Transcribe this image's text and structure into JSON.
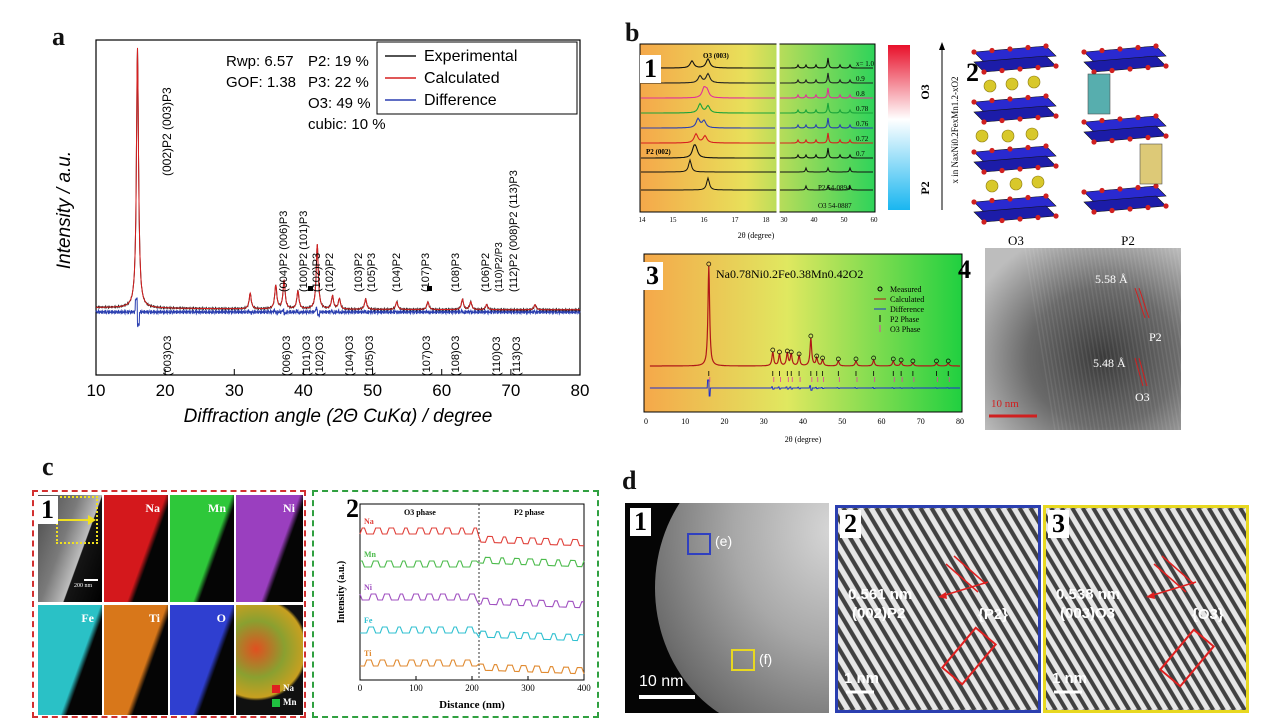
{
  "panel_a": {
    "letter": "a",
    "stats": {
      "rwp": "Rwp: 6.57",
      "gof": "GOF: 1.38",
      "p2": "P2: 19 %",
      "p3": "P3: 22 %",
      "o3": "O3: 49 %",
      "cubic": "cubic: 10 %"
    },
    "legend": [
      "Experimental",
      "Calculated",
      "Difference"
    ],
    "colors": {
      "experimental": "#1a1a1a",
      "calculated": "#d62020",
      "difference": "#2b3fb0"
    },
    "upper_labels": [
      "(002)P2 (003)P3",
      "(004)P2 (006)P3",
      "(100)P2 (101)P3",
      "(102)P3",
      "(102)P2",
      "(103)P2",
      "(105)P3",
      "(104)P2",
      "(107)P3",
      "(108)P3",
      "(106)P2",
      "(110)P2/P3",
      "(112)P2 (008)P2 (113)P3"
    ],
    "lower_labels": [
      "(003)O3",
      "(006)O3",
      "(101)O3",
      "(102)O3",
      "(104)O3",
      "(105)O3",
      "(107)O3",
      "(108)O3",
      "(110)O3",
      "(113)O3"
    ],
    "chart_data": {
      "type": "line",
      "xlabel": "Diffraction angle (2Θ CuKα) / degree",
      "ylabel": "Intensity / a.u.",
      "xlim": [
        10,
        80
      ],
      "xticks": [
        10,
        20,
        30,
        40,
        50,
        60,
        70,
        80
      ],
      "series": [
        {
          "name": "Experimental",
          "peaks": [
            [
              16.0,
              1.0
            ],
            [
              32.3,
              0.06
            ],
            [
              36.0,
              0.09
            ],
            [
              37.2,
              0.11
            ],
            [
              39.2,
              0.07
            ],
            [
              42.0,
              0.25
            ],
            [
              44.2,
              0.05
            ],
            [
              45.2,
              0.04
            ],
            [
              49.0,
              0.04
            ],
            [
              53.5,
              0.03
            ],
            [
              58.0,
              0.03
            ],
            [
              63.0,
              0.04
            ],
            [
              64.2,
              0.03
            ],
            [
              66.5,
              0.02
            ],
            [
              73.5,
              0.02
            ]
          ]
        },
        {
          "name": "Calculated",
          "peaks": [
            [
              16.0,
              1.0
            ],
            [
              32.3,
              0.06
            ],
            [
              36.0,
              0.09
            ],
            [
              37.2,
              0.11
            ],
            [
              39.2,
              0.07
            ],
            [
              42.0,
              0.25
            ],
            [
              44.2,
              0.05
            ],
            [
              45.2,
              0.04
            ],
            [
              49.0,
              0.04
            ],
            [
              53.5,
              0.03
            ],
            [
              58.0,
              0.03
            ],
            [
              63.0,
              0.04
            ],
            [
              64.2,
              0.03
            ],
            [
              66.5,
              0.02
            ],
            [
              73.5,
              0.02
            ]
          ]
        },
        {
          "name": "Difference",
          "baseline_offset": -0.12
        }
      ]
    }
  },
  "panel_b": {
    "letter": "b",
    "sub1": {
      "num": "1",
      "x_values": [
        "x= 1.0",
        "0.9",
        "0.8",
        "0.78",
        "0.76",
        "0.72",
        "0.7"
      ],
      "ref_labels": [
        "P2 54-0894",
        "O3 54-0887"
      ],
      "peak_labels": [
        "O3 (003)",
        "P2 (002)"
      ],
      "xlabel": "2θ (degree)",
      "xticks_left": [
        "14",
        "15",
        "16",
        "17",
        "18"
      ],
      "xticks_right": [
        "30",
        "40",
        "50",
        "60"
      ],
      "colors": [
        "#111111",
        "#222222",
        "#e0309a",
        "#19a33a",
        "#2b3fb0",
        "#d62020",
        "#111111"
      ]
    },
    "bar": {
      "top": "O3",
      "bottom": "P2",
      "axis": "x in NaxNi0.2FexMn1.2-xO2"
    },
    "sub2": {
      "num": "2",
      "labels": [
        "O3",
        "P2"
      ]
    },
    "sub3": {
      "num": "3",
      "formula": "Na0.78Ni0.2Fe0.38Mn0.42O2",
      "legend": [
        "Measured",
        "Calculated",
        "Difference",
        "P2 Phase",
        "O3 Phase"
      ],
      "xlabel": "2θ (degree)",
      "xticks": [
        "0",
        "10",
        "20",
        "30",
        "40",
        "50",
        "60",
        "70",
        "80"
      ]
    },
    "sub4": {
      "num": "4",
      "d1": "5.58 Å",
      "d2": "5.48 Å",
      "p2": "P2",
      "o3": "O3",
      "scale": "10 nm"
    }
  },
  "panel_c": {
    "letter": "c",
    "sub1": {
      "num": "1",
      "scale": "200 nm",
      "tiles": [
        {
          "label": "",
          "color": "#5f5f5f"
        },
        {
          "label": "Na",
          "color": "#d4181c"
        },
        {
          "label": "Mn",
          "color": "#2ec83a"
        },
        {
          "label": "Ni",
          "color": "#9a3fbf"
        },
        {
          "label": "Fe",
          "color": "#2ac1c6"
        },
        {
          "label": "Ti",
          "color": "#d8771a"
        },
        {
          "label": "O",
          "color": "#2f3fd0"
        },
        {
          "label": "",
          "color": "#9a8a2a"
        }
      ],
      "overlay_legend": [
        "Na",
        "Mn"
      ]
    },
    "sub2": {
      "num": "2",
      "phase_left": "O3 phase",
      "phase_right": "P2 phase",
      "xlabel": "Distance (nm)",
      "ylabel": "Intensity (a.u.)",
      "xticks": [
        "0",
        "100",
        "200",
        "300",
        "400"
      ],
      "series": [
        {
          "name": "Na",
          "color": "#e0403a"
        },
        {
          "name": "Mn",
          "color": "#4cbb4c"
        },
        {
          "name": "Ni",
          "color": "#a050c0"
        },
        {
          "name": "Fe",
          "color": "#30c0d0"
        },
        {
          "name": "Ti",
          "color": "#e08a30"
        }
      ]
    }
  },
  "panel_d": {
    "letter": "d",
    "sub1": {
      "num": "1",
      "box_e": "(e)",
      "box_f": "(f)",
      "scale": "10 nm"
    },
    "sub2": {
      "num": "2",
      "spacing": "0.561 nm",
      "plane": "(002)P2",
      "phase": "{P2}",
      "scale": "1 nm",
      "border": "#2b3fb0"
    },
    "sub3": {
      "num": "3",
      "spacing": "0.538 nm",
      "plane": "(003)O3",
      "phase": "{O3}",
      "scale": "1 nm",
      "border": "#e8d820"
    }
  }
}
